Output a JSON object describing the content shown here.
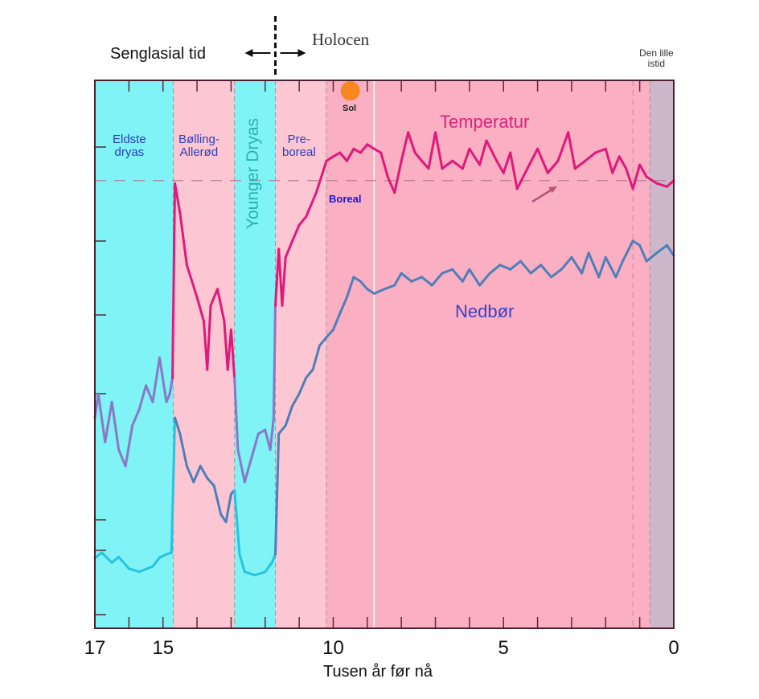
{
  "chart_data": {
    "type": "line",
    "title": "",
    "xlabel": "Tusen år før nå",
    "ylabel": "",
    "xlim": [
      17,
      0
    ],
    "ylim": [
      0,
      100
    ],
    "x_ticks": [
      "17",
      "15",
      "10",
      "5",
      "0"
    ],
    "x_tick_values": [
      17,
      15,
      10,
      5,
      0
    ],
    "reference_level": 81.7,
    "colors": {
      "cyan_band": "#7ff3f5",
      "light_pink_band": "#fcc6d2",
      "pink_band": "#fbafc3",
      "ice_age_band": "#cdb8cb",
      "temperature": "#e0197a",
      "temperature_cold": "#8a78c6",
      "precipitation": "#4d7fb8",
      "precipitation_cold": "#2ac3df",
      "sun": "#f5891f"
    },
    "periods": [
      {
        "name": "Eldste dryas",
        "lines": [
          "Eldste",
          "dryas"
        ],
        "from": 17,
        "to": 14.7,
        "kind": "cold"
      },
      {
        "name": "Bølling-Allerød",
        "lines": [
          "Bølling-",
          "Allerød"
        ],
        "from": 14.7,
        "to": 12.9,
        "kind": "warm-light"
      },
      {
        "name": "Younger Dryas",
        "lines": [
          "Younger Dryas"
        ],
        "from": 12.9,
        "to": 11.7,
        "kind": "cold"
      },
      {
        "name": "Preboreal",
        "lines": [
          "Pre-",
          "boreal"
        ],
        "from": 11.7,
        "to": 10.2,
        "kind": "warm-light"
      },
      {
        "name": "Boreal",
        "lines": [
          "Boreal"
        ],
        "from": 10.2,
        "to": 0.7,
        "kind": "warm"
      },
      {
        "name": "Den lille istid",
        "lines": [
          "Den lille",
          "istid"
        ],
        "from": 0.7,
        "to": 0,
        "kind": "ice"
      }
    ],
    "era_labels": {
      "left": "Senglasial tid",
      "right": "Holocen",
      "boundary": 11.7
    },
    "sun_label": "Sol",
    "sun_at": 9.5,
    "series": [
      {
        "name": "Temperatur",
        "points": [
          [
            17,
            38.4
          ],
          [
            16.9,
            42.8
          ],
          [
            16.7,
            34.0
          ],
          [
            16.5,
            41.3
          ],
          [
            16.3,
            32.6
          ],
          [
            16.1,
            29.6
          ],
          [
            15.9,
            37.0
          ],
          [
            15.7,
            39.9
          ],
          [
            15.5,
            44.3
          ],
          [
            15.3,
            41.3
          ],
          [
            15.1,
            49.4
          ],
          [
            14.9,
            41.3
          ],
          [
            14.8,
            42.8
          ],
          [
            14.72,
            45.7
          ],
          [
            14.65,
            81.2
          ],
          [
            14.5,
            75.8
          ],
          [
            14.3,
            66.3
          ],
          [
            14.0,
            60.4
          ],
          [
            13.8,
            56.0
          ],
          [
            13.7,
            47.2
          ],
          [
            13.6,
            58.9
          ],
          [
            13.4,
            61.9
          ],
          [
            13.2,
            56.0
          ],
          [
            13.1,
            47.2
          ],
          [
            13.0,
            54.5
          ],
          [
            12.9,
            45.7
          ],
          [
            12.8,
            32.6
          ],
          [
            12.6,
            26.7
          ],
          [
            12.4,
            31.1
          ],
          [
            12.2,
            35.5
          ],
          [
            12.0,
            36.2
          ],
          [
            11.85,
            32.6
          ],
          [
            11.75,
            38.4
          ],
          [
            11.7,
            58.9
          ],
          [
            11.6,
            69.2
          ],
          [
            11.5,
            58.9
          ],
          [
            11.4,
            67.7
          ],
          [
            11.2,
            70.7
          ],
          [
            11.0,
            73.6
          ],
          [
            10.8,
            75.1
          ],
          [
            10.5,
            79.5
          ],
          [
            10.2,
            85.3
          ],
          [
            10.0,
            86.1
          ],
          [
            9.8,
            86.8
          ],
          [
            9.6,
            85.3
          ],
          [
            9.4,
            87.5
          ],
          [
            9.2,
            86.8
          ],
          [
            9.0,
            88.3
          ],
          [
            8.8,
            87.5
          ],
          [
            8.6,
            86.8
          ],
          [
            8.4,
            82.4
          ],
          [
            8.2,
            79.5
          ],
          [
            8.0,
            85.3
          ],
          [
            7.8,
            90.5
          ],
          [
            7.6,
            86.8
          ],
          [
            7.4,
            85.3
          ],
          [
            7.2,
            83.9
          ],
          [
            7.0,
            90.5
          ],
          [
            6.8,
            83.9
          ],
          [
            6.5,
            85.3
          ],
          [
            6.2,
            83.9
          ],
          [
            6.0,
            87.5
          ],
          [
            5.7,
            84.6
          ],
          [
            5.5,
            89.0
          ],
          [
            5.2,
            85.3
          ],
          [
            5.0,
            83.1
          ],
          [
            4.8,
            86.8
          ],
          [
            4.6,
            80.2
          ],
          [
            4.3,
            83.9
          ],
          [
            4.0,
            87.5
          ],
          [
            3.7,
            83.1
          ],
          [
            3.4,
            85.3
          ],
          [
            3.1,
            90.5
          ],
          [
            2.9,
            83.9
          ],
          [
            2.6,
            85.3
          ],
          [
            2.3,
            86.8
          ],
          [
            2.0,
            87.5
          ],
          [
            1.8,
            83.1
          ],
          [
            1.6,
            86.1
          ],
          [
            1.4,
            83.9
          ],
          [
            1.2,
            80.2
          ],
          [
            1.0,
            84.6
          ],
          [
            0.8,
            82.4
          ],
          [
            0.5,
            81.2
          ],
          [
            0.2,
            80.6
          ],
          [
            0,
            81.7
          ]
        ]
      },
      {
        "name": "Nedbør",
        "points": [
          [
            17,
            12.8
          ],
          [
            16.8,
            13.8
          ],
          [
            16.5,
            12.0
          ],
          [
            16.3,
            13.0
          ],
          [
            16.0,
            10.9
          ],
          [
            15.7,
            10.3
          ],
          [
            15.3,
            11.3
          ],
          [
            15.1,
            12.9
          ],
          [
            14.9,
            13.5
          ],
          [
            14.75,
            13.8
          ],
          [
            14.65,
            38.4
          ],
          [
            14.5,
            35.5
          ],
          [
            14.3,
            29.6
          ],
          [
            14.1,
            26.7
          ],
          [
            13.9,
            29.6
          ],
          [
            13.7,
            27.4
          ],
          [
            13.5,
            26.0
          ],
          [
            13.3,
            20.8
          ],
          [
            13.15,
            19.4
          ],
          [
            13.0,
            24.5
          ],
          [
            12.9,
            25.2
          ],
          [
            12.75,
            13.5
          ],
          [
            12.6,
            10.3
          ],
          [
            12.3,
            9.7
          ],
          [
            12.0,
            10.3
          ],
          [
            11.8,
            12.0
          ],
          [
            11.7,
            13.5
          ],
          [
            11.6,
            35.5
          ],
          [
            11.4,
            37.0
          ],
          [
            11.2,
            40.6
          ],
          [
            11.0,
            42.8
          ],
          [
            10.8,
            45.7
          ],
          [
            10.6,
            47.2
          ],
          [
            10.4,
            51.6
          ],
          [
            10.2,
            53.1
          ],
          [
            10.0,
            54.5
          ],
          [
            9.8,
            57.5
          ],
          [
            9.6,
            60.4
          ],
          [
            9.4,
            64.1
          ],
          [
            9.2,
            63.3
          ],
          [
            9.0,
            61.9
          ],
          [
            8.8,
            61.1
          ],
          [
            8.5,
            61.9
          ],
          [
            8.2,
            62.6
          ],
          [
            8.0,
            64.8
          ],
          [
            7.7,
            63.3
          ],
          [
            7.4,
            64.1
          ],
          [
            7.1,
            62.6
          ],
          [
            6.8,
            64.8
          ],
          [
            6.5,
            65.5
          ],
          [
            6.2,
            63.3
          ],
          [
            6.0,
            65.5
          ],
          [
            5.7,
            62.6
          ],
          [
            5.4,
            64.8
          ],
          [
            5.1,
            66.3
          ],
          [
            4.8,
            65.5
          ],
          [
            4.5,
            67.0
          ],
          [
            4.2,
            64.8
          ],
          [
            3.9,
            66.3
          ],
          [
            3.6,
            64.1
          ],
          [
            3.3,
            65.5
          ],
          [
            3.0,
            67.7
          ],
          [
            2.7,
            64.8
          ],
          [
            2.5,
            68.5
          ],
          [
            2.2,
            64.1
          ],
          [
            2.0,
            67.7
          ],
          [
            1.7,
            64.1
          ],
          [
            1.5,
            67.0
          ],
          [
            1.2,
            70.7
          ],
          [
            1.0,
            69.9
          ],
          [
            0.8,
            67.0
          ],
          [
            0.5,
            68.5
          ],
          [
            0.2,
            69.9
          ],
          [
            0,
            68.0
          ]
        ]
      }
    ]
  }
}
